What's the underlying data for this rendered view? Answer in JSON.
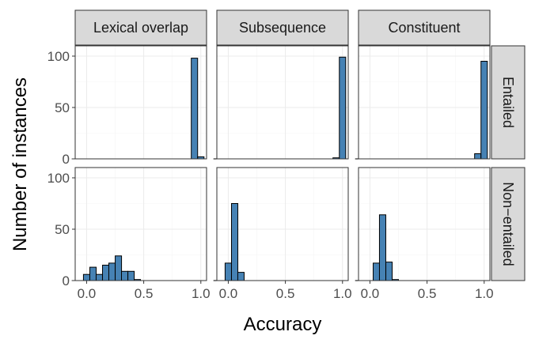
{
  "chart_data": {
    "type": "bar",
    "subtype": "faceted-histogram",
    "xlabel": "Accuracy",
    "ylabel": "Number of instances",
    "columns": [
      "Lexical overlap",
      "Subsequence",
      "Constituent"
    ],
    "rows": [
      "Entailed",
      "Non−entailed"
    ],
    "bin_width": 0.0556,
    "xlim": [
      -0.1,
      1.05
    ],
    "ylim": [
      0,
      110
    ],
    "x_ticks": [
      0.0,
      0.5,
      1.0
    ],
    "x_tick_labels": [
      "0.0",
      "0.5",
      "1.0"
    ],
    "y_ticks": [
      0,
      50,
      100
    ],
    "y_tick_labels": [
      "0",
      "50",
      "100"
    ],
    "bar_color": "#4682b4",
    "grid": true,
    "baseline_x_range": [
      -0.13,
      1.05
    ],
    "panels": [
      {
        "row": "Entailed",
        "column": "Lexical overlap",
        "bins": [
          {
            "x": 0.944,
            "count": 98
          },
          {
            "x": 1.0,
            "count": 2
          }
        ]
      },
      {
        "row": "Entailed",
        "column": "Subsequence",
        "bins": [
          {
            "x": 0.944,
            "count": 1
          },
          {
            "x": 1.0,
            "count": 99
          }
        ]
      },
      {
        "row": "Entailed",
        "column": "Constituent",
        "bins": [
          {
            "x": 0.944,
            "count": 5
          },
          {
            "x": 1.0,
            "count": 95
          }
        ]
      },
      {
        "row": "Non−entailed",
        "column": "Lexical overlap",
        "bins": [
          {
            "x": 0.0,
            "count": 6
          },
          {
            "x": 0.056,
            "count": 13
          },
          {
            "x": 0.111,
            "count": 6
          },
          {
            "x": 0.167,
            "count": 15
          },
          {
            "x": 0.222,
            "count": 17
          },
          {
            "x": 0.278,
            "count": 24
          },
          {
            "x": 0.333,
            "count": 9
          },
          {
            "x": 0.389,
            "count": 9
          },
          {
            "x": 0.444,
            "count": 1
          }
        ]
      },
      {
        "row": "Non−entailed",
        "column": "Subsequence",
        "bins": [
          {
            "x": 0.0,
            "count": 17
          },
          {
            "x": 0.056,
            "count": 75
          },
          {
            "x": 0.111,
            "count": 8
          }
        ]
      },
      {
        "row": "Non−entailed",
        "column": "Constituent",
        "bins": [
          {
            "x": 0.056,
            "count": 17
          },
          {
            "x": 0.111,
            "count": 64
          },
          {
            "x": 0.167,
            "count": 18
          },
          {
            "x": 0.222,
            "count": 1
          }
        ]
      }
    ]
  }
}
